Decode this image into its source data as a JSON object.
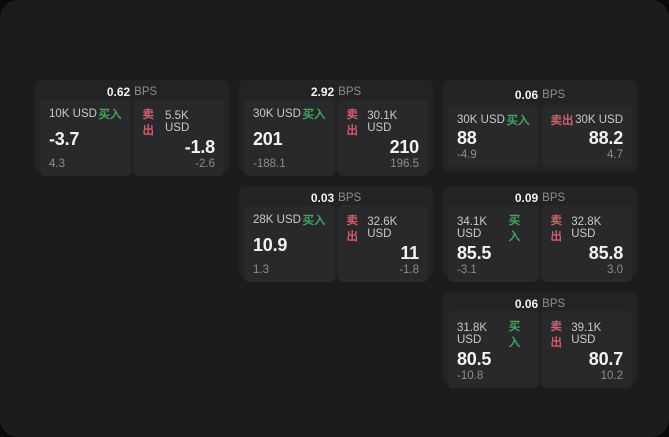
{
  "labels": {
    "bps": "BPS",
    "buy": "买入",
    "sell": "卖出"
  },
  "colors": {
    "page_bg": "#0a0a0b",
    "panel_bg": "#1c1c1e",
    "card_bg": "#232326",
    "tile_bg": "#29292c",
    "buy_green": "#43a45f",
    "sell_red": "#d25c6e",
    "text_primary": "#f2f2f2",
    "text_secondary": "#c9c9c9",
    "text_muted": "#8d8d8d"
  },
  "cards": [
    {
      "col": 1,
      "row": 1,
      "bps": "0.62",
      "buy": {
        "size": "10K USD",
        "price": "-3.7",
        "delta": "4.3"
      },
      "sell": {
        "size": "5.5K USD",
        "price": "-1.8",
        "delta": "-2.6"
      }
    },
    {
      "col": 2,
      "row": 1,
      "bps": "2.92",
      "buy": {
        "size": "30K USD",
        "price": "201",
        "delta": "-188.1"
      },
      "sell": {
        "size": "30.1K USD",
        "price": "210",
        "delta": "196.5"
      }
    },
    {
      "col": 3,
      "row": 1,
      "bps": "0.06",
      "buy": {
        "size": "30K USD",
        "price": "88",
        "delta": "-4.9"
      },
      "sell": {
        "size": "30K USD",
        "price": "88.2",
        "delta": "4.7"
      }
    },
    {
      "col": 2,
      "row": 2,
      "bps": "0.03",
      "buy": {
        "size": "28K USD",
        "price": "10.9",
        "delta": "1.3"
      },
      "sell": {
        "size": "32.6K USD",
        "price": "11",
        "delta": "-1.8"
      }
    },
    {
      "col": 3,
      "row": 2,
      "bps": "0.09",
      "buy": {
        "size": "34.1K USD",
        "price": "85.5",
        "delta": "-3.1"
      },
      "sell": {
        "size": "32.8K USD",
        "price": "85.8",
        "delta": "3.0"
      }
    },
    {
      "col": 3,
      "row": 3,
      "bps": "0.06",
      "buy": {
        "size": "31.8K USD",
        "price": "80.5",
        "delta": "-10.8"
      },
      "sell": {
        "size": "39.1K USD",
        "price": "80.7",
        "delta": "10.2"
      }
    }
  ]
}
